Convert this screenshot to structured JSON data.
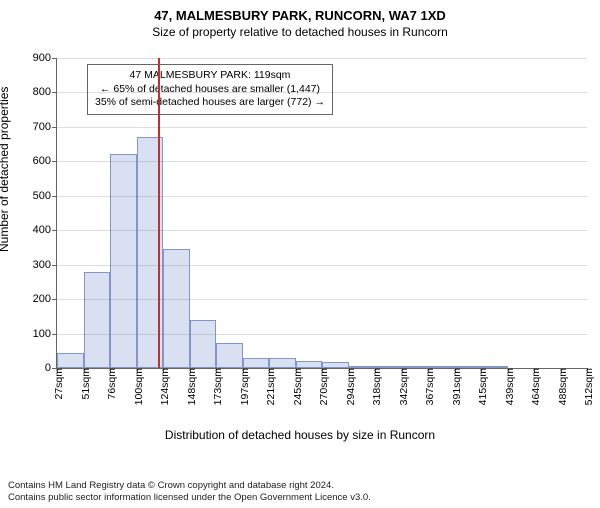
{
  "title_main": "47, MALMESBURY PARK, RUNCORN, WA7 1XD",
  "title_sub": "Size of property relative to detached houses in Runcorn",
  "ylabel": "Number of detached properties",
  "xlabel": "Distribution of detached houses by size in Runcorn",
  "chart": {
    "type": "histogram",
    "ylim": [
      0,
      900
    ],
    "ytick_step": 100,
    "bar_fill": "#d9e0f2",
    "bar_stroke": "#8495c8",
    "grid_color": "#666666",
    "background_color": "#ffffff",
    "vline_color": "#c03030",
    "vline_x": 119,
    "x_start": 27,
    "x_bin_width": 24.25,
    "x_tick_labels": [
      "27sqm",
      "51sqm",
      "76sqm",
      "100sqm",
      "124sqm",
      "148sqm",
      "173sqm",
      "197sqm",
      "221sqm",
      "245sqm",
      "270sqm",
      "294sqm",
      "318sqm",
      "342sqm",
      "367sqm",
      "391sqm",
      "415sqm",
      "439sqm",
      "464sqm",
      "488sqm",
      "512sqm"
    ],
    "values": [
      45,
      278,
      620,
      670,
      345,
      140,
      72,
      28,
      28,
      20,
      18,
      6,
      4,
      2,
      4,
      2,
      2,
      0,
      0,
      0
    ]
  },
  "annotation": {
    "line1": "47 MALMESBURY PARK: 119sqm",
    "line2": "← 65% of detached houses are smaller (1,447)",
    "line3": "35% of semi-detached houses are larger (772) →"
  },
  "footer": {
    "line1": "Contains HM Land Registry data © Crown copyright and database right 2024.",
    "line2": "Contains public sector information licensed under the Open Government Licence v3.0."
  }
}
